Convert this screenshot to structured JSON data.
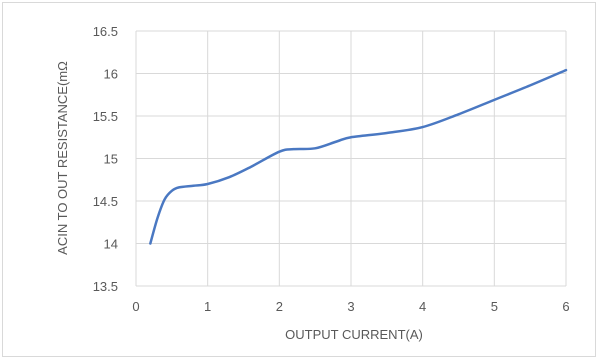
{
  "chart_data": {
    "type": "line",
    "title": "",
    "xlabel": "OUTPUT CURRENT(A)",
    "ylabel": "ACIN TO OUT RESISTANCE(mΩ",
    "xlim": [
      0,
      6
    ],
    "ylim": [
      13.5,
      16.5
    ],
    "x_ticks": [
      "0",
      "1",
      "2",
      "3",
      "4",
      "5",
      "6"
    ],
    "y_ticks": [
      "13.5",
      "14",
      "14.5",
      "15",
      "15.5",
      "16",
      "16.5"
    ],
    "grid": true,
    "legend": "none",
    "line_color": "#4a78c2",
    "grid_color": "#d9d9d9",
    "series": [
      {
        "x": [
          0.2,
          0.3,
          0.4,
          0.5,
          0.6,
          0.8,
          1.0,
          1.3,
          1.6,
          2.0,
          2.2,
          2.5,
          2.8,
          3.0,
          3.5,
          4.0,
          4.5,
          5.0,
          5.5,
          6.0
        ],
        "values": [
          14.0,
          14.3,
          14.52,
          14.62,
          14.66,
          14.68,
          14.7,
          14.78,
          14.9,
          15.08,
          15.11,
          15.12,
          15.2,
          15.25,
          15.3,
          15.37,
          15.52,
          15.69,
          15.86,
          16.04
        ]
      }
    ]
  }
}
